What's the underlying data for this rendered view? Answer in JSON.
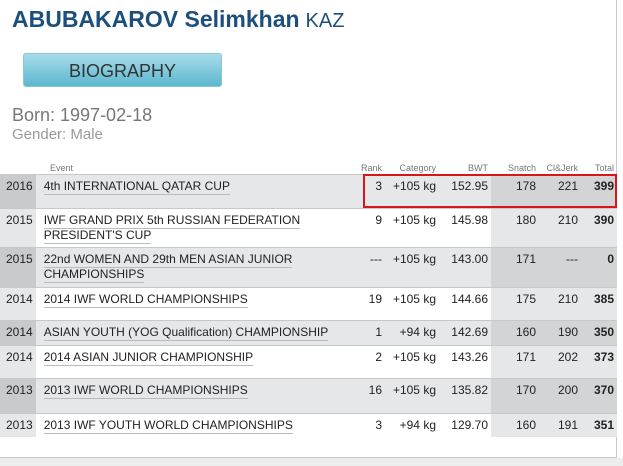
{
  "athlete": {
    "name": "ABUBAKAROV Selimkhan",
    "country": "KAZ",
    "born": "Born: 1997-02-18",
    "gender": "Gender: Male"
  },
  "biography_button": "BIOGRAPHY",
  "table": {
    "headers": {
      "event": "Event",
      "rank": "Rank",
      "category": "Category",
      "bwt": "BWT",
      "snatch": "Snatch",
      "cljerk": "Cl&Jerk",
      "total": "Total"
    },
    "rows": [
      {
        "year": "2016",
        "event": "4th INTERNATIONAL QATAR CUP",
        "rank": "3",
        "category": "+105 kg",
        "bwt": "152.95",
        "snatch": "178",
        "cljerk": "221",
        "total": "399",
        "highlighted": true
      },
      {
        "year": "2015",
        "event": "IWF GRAND PRIX 5th RUSSIAN FEDERATION PRESIDENT'S CUP",
        "rank": "9",
        "category": "+105 kg",
        "bwt": "145.98",
        "snatch": "180",
        "cljerk": "210",
        "total": "390"
      },
      {
        "year": "2015",
        "event": "22nd WOMEN AND 29th MEN ASIAN JUNIOR CHAMPIONSHIPS",
        "rank": "---",
        "category": "+105 kg",
        "bwt": "143.00",
        "snatch": "171",
        "cljerk": "---",
        "total": "0"
      },
      {
        "year": "2014",
        "event": "2014 IWF WORLD CHAMPIONSHIPS",
        "rank": "19",
        "category": "+105 kg",
        "bwt": "144.66",
        "snatch": "175",
        "cljerk": "210",
        "total": "385"
      },
      {
        "year": "2014",
        "event": "ASIAN YOUTH (YOG Qualification) CHAMPIONSHIP",
        "rank": "1",
        "category": "+94 kg",
        "bwt": "142.69",
        "snatch": "160",
        "cljerk": "190",
        "total": "350"
      },
      {
        "year": "2014",
        "event": "2014 ASIAN JUNIOR CHAMPIONSHIP",
        "rank": "2",
        "category": "+105 kg",
        "bwt": "143.26",
        "snatch": "171",
        "cljerk": "202",
        "total": "373"
      },
      {
        "year": "2013",
        "event": "2013 IWF WORLD CHAMPIONSHIPS",
        "rank": "16",
        "category": "+105 kg",
        "bwt": "135.82",
        "snatch": "170",
        "cljerk": "200",
        "total": "370"
      },
      {
        "year": "2013",
        "event": "2013 IWF YOUTH WORLD CHAMPIONSHIPS",
        "rank": "3",
        "category": "+94 kg",
        "bwt": "129.70",
        "snatch": "160",
        "cljerk": "191",
        "total": "351"
      }
    ]
  },
  "colors": {
    "title": "#1d4f7c",
    "highlight": "#d9141b",
    "button": "#5bb7cf"
  }
}
